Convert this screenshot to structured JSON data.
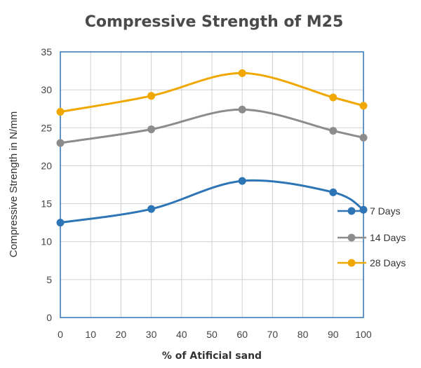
{
  "chart_data": {
    "type": "line",
    "title": "Compressive Strength of M25",
    "xlabel": "% of Atificial sand",
    "ylabel": "Compressive Strength in N/mm",
    "x": [
      0,
      30,
      60,
      90,
      100
    ],
    "xticks": [
      0,
      10,
      20,
      30,
      40,
      50,
      60,
      70,
      80,
      90,
      100
    ],
    "yticks": [
      0,
      5,
      10,
      15,
      20,
      25,
      30,
      35
    ],
    "xlim": [
      0,
      100
    ],
    "ylim": [
      0,
      35
    ],
    "grid": true,
    "legend_position": "right",
    "series": [
      {
        "name": "7 Days",
        "color": "#2E75B6",
        "values": [
          12.5,
          14.3,
          18.0,
          16.5,
          14.2
        ]
      },
      {
        "name": "14 Days",
        "color": "#8C8C8C",
        "values": [
          23.0,
          24.8,
          27.4,
          24.6,
          23.7
        ]
      },
      {
        "name": "28 Days",
        "color": "#F0A800",
        "values": [
          27.1,
          29.2,
          32.2,
          29.0,
          27.9
        ]
      }
    ]
  }
}
